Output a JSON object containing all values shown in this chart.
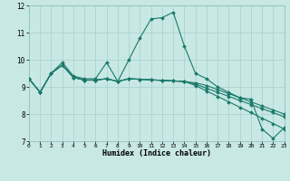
{
  "xlabel": "Humidex (Indice chaleur)",
  "bg_color": "#c8e8e4",
  "grid_color": "#aad4d0",
  "line_color": "#1a7a6a",
  "xlim": [
    0,
    23
  ],
  "ylim": [
    7,
    12
  ],
  "yticks": [
    7,
    8,
    9,
    10,
    11,
    12
  ],
  "xticks": [
    0,
    1,
    2,
    3,
    4,
    5,
    6,
    7,
    8,
    9,
    10,
    11,
    12,
    13,
    14,
    15,
    16,
    17,
    18,
    19,
    20,
    21,
    22,
    23
  ],
  "curves": [
    {
      "x": [
        0,
        1,
        2,
        3,
        4,
        5,
        6,
        7,
        8,
        9,
        10,
        11,
        12,
        13,
        14,
        15,
        16,
        17,
        18,
        19,
        20,
        21,
        22,
        23
      ],
      "y": [
        9.3,
        8.8,
        9.5,
        9.9,
        9.4,
        9.3,
        9.3,
        9.9,
        9.2,
        10.0,
        10.8,
        11.5,
        11.55,
        11.75,
        10.5,
        9.5,
        9.3,
        9.0,
        8.8,
        8.6,
        8.55,
        7.45,
        7.1,
        7.5
      ]
    },
    {
      "x": [
        0,
        1,
        2,
        3,
        4,
        5,
        6,
        7,
        8,
        9,
        10,
        11,
        12,
        13,
        14,
        15,
        16,
        17,
        18,
        19,
        20,
        21,
        22,
        23
      ],
      "y": [
        9.3,
        8.8,
        9.5,
        9.8,
        9.35,
        9.25,
        9.25,
        9.3,
        9.2,
        9.3,
        9.28,
        9.26,
        9.24,
        9.22,
        9.2,
        9.15,
        9.05,
        8.9,
        8.75,
        8.6,
        8.45,
        8.3,
        8.15,
        8.0
      ]
    },
    {
      "x": [
        0,
        1,
        2,
        3,
        4,
        5,
        6,
        7,
        8,
        9,
        10,
        11,
        12,
        13,
        14,
        15,
        16,
        17,
        18,
        19,
        20,
        21,
        22,
        23
      ],
      "y": [
        9.3,
        8.8,
        9.5,
        9.8,
        9.35,
        9.25,
        9.25,
        9.3,
        9.2,
        9.3,
        9.28,
        9.26,
        9.24,
        9.22,
        9.2,
        9.1,
        8.95,
        8.8,
        8.65,
        8.5,
        8.35,
        8.2,
        8.05,
        7.9
      ]
    },
    {
      "x": [
        0,
        1,
        2,
        3,
        4,
        5,
        6,
        7,
        8,
        9,
        10,
        11,
        12,
        13,
        14,
        15,
        16,
        17,
        18,
        19,
        20,
        21,
        22,
        23
      ],
      "y": [
        9.3,
        8.8,
        9.5,
        9.8,
        9.35,
        9.25,
        9.25,
        9.3,
        9.2,
        9.3,
        9.28,
        9.26,
        9.24,
        9.22,
        9.2,
        9.05,
        8.85,
        8.65,
        8.45,
        8.25,
        8.05,
        7.85,
        7.65,
        7.45
      ]
    }
  ]
}
